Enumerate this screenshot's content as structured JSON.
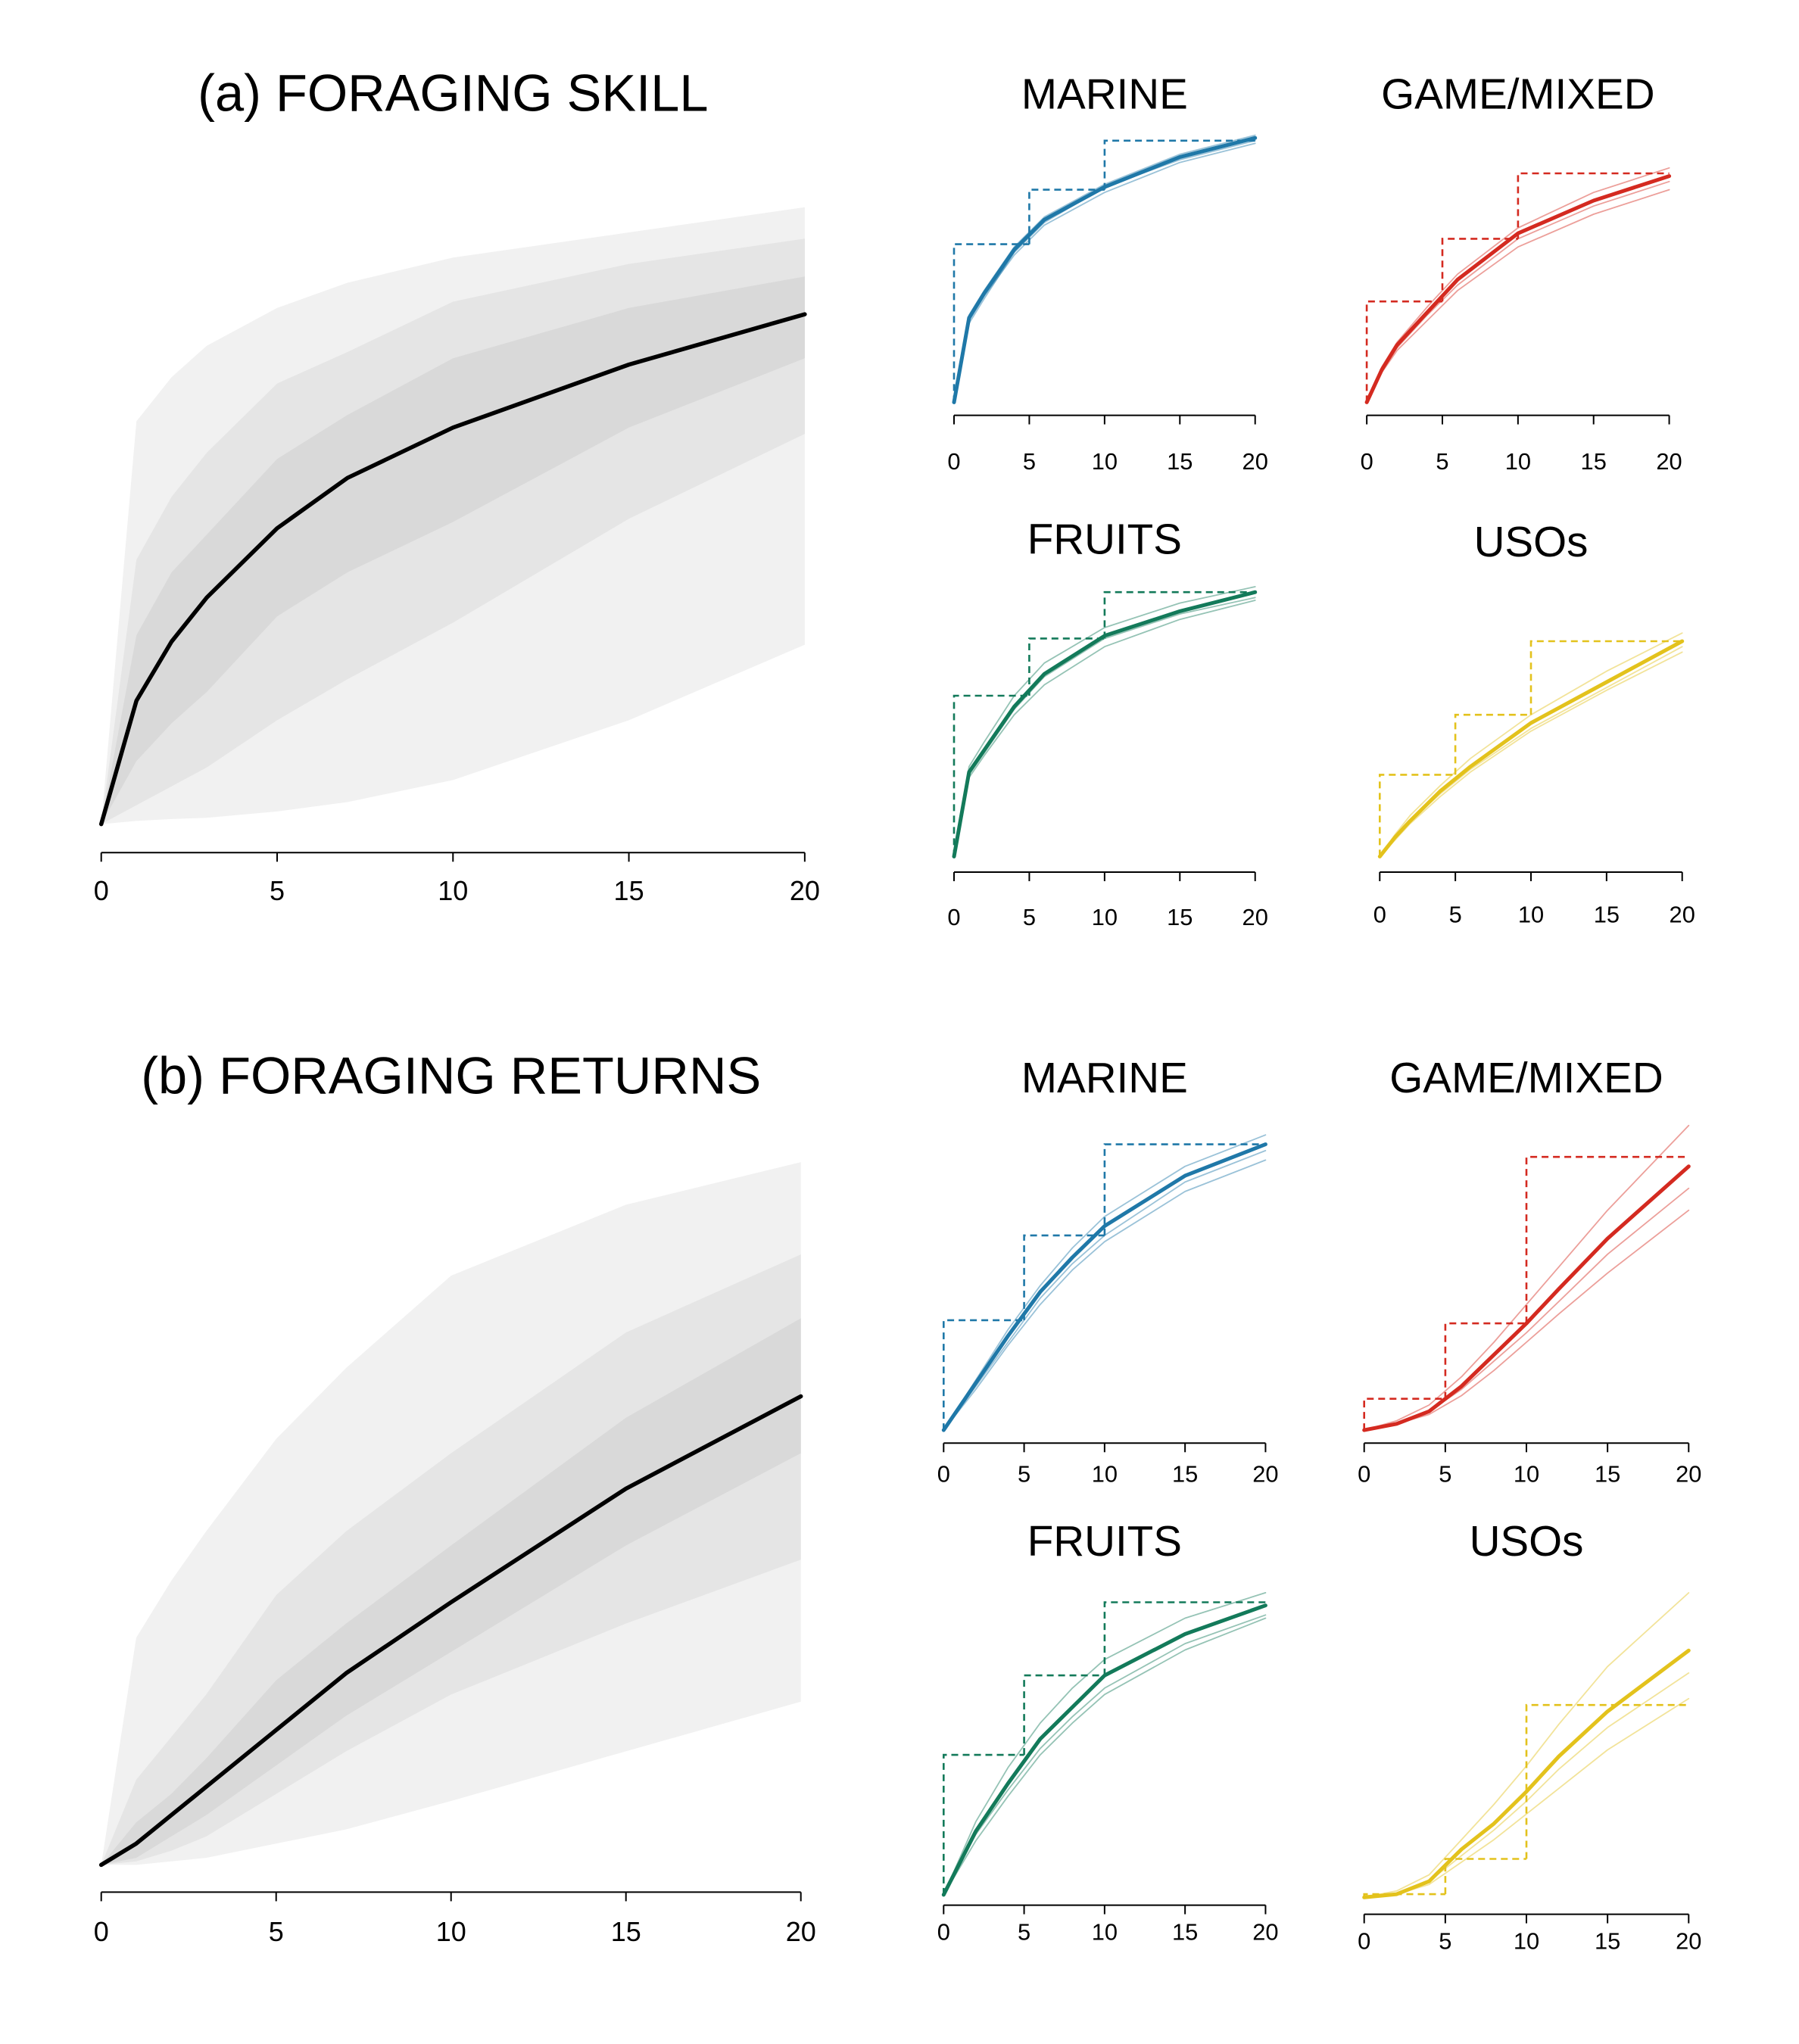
{
  "chart_data": [
    {
      "type": "band-line",
      "title": "(a) FORAGING SKILL",
      "x": [
        0,
        1,
        2,
        3,
        5,
        7,
        10,
        15,
        20
      ],
      "values": [
        0,
        0.196,
        0.29,
        0.36,
        0.47,
        0.55,
        0.63,
        0.73,
        0.81
      ],
      "color": "#000000",
      "bands": [
        {
          "color": "#f1f1f1",
          "lower": [
            0,
            0.005,
            0.008,
            0.01,
            0.02,
            0.035,
            0.07,
            0.165,
            0.285
          ],
          "upper": [
            0,
            0.64,
            0.71,
            0.76,
            0.82,
            0.86,
            0.9,
            0.94,
            0.98
          ]
        },
        {
          "color": "#e5e5e5",
          "lower": [
            0,
            0.03,
            0.06,
            0.09,
            0.165,
            0.23,
            0.32,
            0.485,
            0.62
          ],
          "upper": [
            0,
            0.42,
            0.52,
            0.59,
            0.7,
            0.75,
            0.83,
            0.89,
            0.93
          ]
        },
        {
          "color": "#d9d9d9",
          "lower": [
            0,
            0.1,
            0.16,
            0.21,
            0.33,
            0.4,
            0.48,
            0.63,
            0.74
          ],
          "upper": [
            0,
            0.3,
            0.4,
            0.46,
            0.58,
            0.65,
            0.74,
            0.82,
            0.87
          ]
        }
      ],
      "xlim": [
        0,
        20
      ],
      "xticks": [
        0,
        5,
        10,
        15,
        20
      ],
      "ylim": [
        0,
        1
      ]
    },
    {
      "type": "spaghetti",
      "title": "MARINE",
      "x": [
        0,
        1,
        2,
        4,
        6,
        10,
        15,
        20
      ],
      "values": [
        0,
        0.31,
        0.4,
        0.56,
        0.67,
        0.79,
        0.9,
        0.97
      ],
      "color": "#1f78a8",
      "draws": [
        [
          0,
          0.3,
          0.39,
          0.54,
          0.65,
          0.77,
          0.88,
          0.95
        ],
        [
          0,
          0.32,
          0.41,
          0.57,
          0.68,
          0.8,
          0.91,
          0.98
        ],
        [
          0,
          0.29,
          0.38,
          0.55,
          0.66,
          0.79,
          0.89,
          0.96
        ]
      ],
      "step_x": [
        0,
        5,
        10
      ],
      "step_values": [
        0.58,
        0.78,
        0.96
      ],
      "xlim": [
        0,
        20
      ],
      "xticks": [
        0,
        5,
        10,
        15,
        20
      ],
      "ylim": [
        0,
        1
      ]
    },
    {
      "type": "spaghetti",
      "title": "GAME/MIXED",
      "x": [
        0,
        1,
        2,
        4,
        6,
        10,
        15,
        20
      ],
      "values": [
        0,
        0.12,
        0.21,
        0.33,
        0.45,
        0.62,
        0.74,
        0.83
      ],
      "color": "#d42a20",
      "draws": [
        [
          0,
          0.11,
          0.19,
          0.3,
          0.41,
          0.57,
          0.69,
          0.78
        ],
        [
          0,
          0.13,
          0.22,
          0.35,
          0.47,
          0.64,
          0.77,
          0.86
        ],
        [
          0,
          0.12,
          0.2,
          0.32,
          0.43,
          0.6,
          0.72,
          0.81
        ]
      ],
      "step_x": [
        0,
        5,
        10
      ],
      "step_values": [
        0.37,
        0.6,
        0.84
      ],
      "xlim": [
        0,
        20
      ],
      "xticks": [
        0,
        5,
        10,
        15,
        20
      ],
      "ylim": [
        0,
        1
      ]
    },
    {
      "type": "spaghetti",
      "title": "FRUITS",
      "x": [
        0,
        1,
        2,
        4,
        6,
        10,
        15,
        20
      ],
      "values": [
        0,
        0.31,
        0.39,
        0.55,
        0.67,
        0.81,
        0.9,
        0.97
      ],
      "color": "#137a5a",
      "draws": [
        [
          0,
          0.29,
          0.37,
          0.52,
          0.63,
          0.77,
          0.87,
          0.94
        ],
        [
          0,
          0.33,
          0.42,
          0.59,
          0.71,
          0.84,
          0.93,
          0.99
        ],
        [
          0,
          0.3,
          0.38,
          0.54,
          0.66,
          0.8,
          0.89,
          0.95
        ]
      ],
      "step_x": [
        0,
        5,
        10
      ],
      "step_values": [
        0.59,
        0.8,
        0.97
      ],
      "xlim": [
        0,
        20
      ],
      "xticks": [
        0,
        5,
        10,
        15,
        20
      ],
      "ylim": [
        0,
        1
      ]
    },
    {
      "type": "spaghetti",
      "title": "USOs",
      "x": [
        0,
        1,
        2,
        4,
        6,
        10,
        15,
        20
      ],
      "values": [
        0,
        0.07,
        0.13,
        0.24,
        0.33,
        0.49,
        0.64,
        0.79
      ],
      "color": "#e3c21c",
      "draws": [
        [
          0,
          0.06,
          0.12,
          0.22,
          0.31,
          0.46,
          0.61,
          0.75
        ],
        [
          0,
          0.08,
          0.15,
          0.26,
          0.36,
          0.52,
          0.68,
          0.82
        ],
        [
          0,
          0.07,
          0.13,
          0.23,
          0.32,
          0.47,
          0.62,
          0.77
        ]
      ],
      "step_x": [
        0,
        5,
        10
      ],
      "step_values": [
        0.3,
        0.52,
        0.79
      ],
      "xlim": [
        0,
        20
      ],
      "xticks": [
        0,
        5,
        10,
        15,
        20
      ],
      "ylim": [
        0,
        1
      ]
    },
    {
      "type": "band-line",
      "title": "(b) FORAGING RETURNS",
      "x": [
        0,
        1,
        2,
        3,
        5,
        7,
        10,
        15,
        20
      ],
      "values": [
        0,
        0.03,
        0.07,
        0.11,
        0.19,
        0.27,
        0.37,
        0.53,
        0.66
      ],
      "color": "#000000",
      "bands": [
        {
          "color": "#f1f1f1",
          "lower": [
            0,
            0,
            0.005,
            0.01,
            0.03,
            0.05,
            0.09,
            0.16,
            0.23
          ],
          "upper": [
            0,
            0.32,
            0.4,
            0.47,
            0.6,
            0.7,
            0.83,
            0.93,
            0.99
          ]
        },
        {
          "color": "#e5e5e5",
          "lower": [
            0,
            0.005,
            0.02,
            0.04,
            0.1,
            0.16,
            0.24,
            0.34,
            0.43
          ],
          "upper": [
            0,
            0.12,
            0.18,
            0.24,
            0.38,
            0.47,
            0.58,
            0.75,
            0.86
          ]
        },
        {
          "color": "#d9d9d9",
          "lower": [
            0,
            0.01,
            0.04,
            0.07,
            0.14,
            0.21,
            0.3,
            0.45,
            0.58
          ],
          "upper": [
            0,
            0.06,
            0.1,
            0.15,
            0.26,
            0.34,
            0.45,
            0.63,
            0.77
          ]
        }
      ],
      "xlim": [
        0,
        20
      ],
      "xticks": [
        0,
        5,
        10,
        15,
        20
      ],
      "ylim": [
        0,
        1
      ]
    },
    {
      "type": "spaghetti",
      "title": "MARINE",
      "x": [
        0,
        2,
        4,
        6,
        8,
        10,
        15,
        20
      ],
      "values": [
        0,
        0.15,
        0.3,
        0.44,
        0.55,
        0.65,
        0.81,
        0.91
      ],
      "color": "#1f78a8",
      "draws": [
        [
          0,
          0.13,
          0.27,
          0.4,
          0.51,
          0.6,
          0.76,
          0.86
        ],
        [
          0,
          0.16,
          0.32,
          0.46,
          0.58,
          0.68,
          0.84,
          0.94
        ],
        [
          0,
          0.14,
          0.28,
          0.42,
          0.53,
          0.62,
          0.79,
          0.89
        ]
      ],
      "step_x": [
        0,
        5,
        10
      ],
      "step_values": [
        0.35,
        0.62,
        0.91
      ],
      "xlim": [
        0,
        20
      ],
      "xticks": [
        0,
        5,
        10,
        15,
        20
      ],
      "ylim": [
        0,
        1
      ]
    },
    {
      "type": "spaghetti",
      "title": "GAME/MIXED",
      "x": [
        0,
        2,
        4,
        6,
        8,
        10,
        12,
        15,
        20
      ],
      "values": [
        0,
        0.02,
        0.06,
        0.14,
        0.24,
        0.34,
        0.45,
        0.61,
        0.84
      ],
      "color": "#d42a20",
      "draws": [
        [
          0,
          0.02,
          0.05,
          0.11,
          0.19,
          0.28,
          0.37,
          0.5,
          0.7
        ],
        [
          0,
          0.03,
          0.08,
          0.17,
          0.28,
          0.4,
          0.52,
          0.7,
          0.97
        ],
        [
          0,
          0.02,
          0.06,
          0.13,
          0.22,
          0.31,
          0.41,
          0.56,
          0.77
        ]
      ],
      "step_x": [
        0,
        5,
        10
      ],
      "step_values": [
        0.1,
        0.34,
        0.87
      ],
      "xlim": [
        0,
        20
      ],
      "xticks": [
        0,
        5,
        10,
        15,
        20
      ],
      "ylim": [
        0,
        1
      ]
    },
    {
      "type": "spaghetti",
      "title": "FRUITS",
      "x": [
        0,
        2,
        4,
        6,
        8,
        10,
        15,
        20
      ],
      "values": [
        0,
        0.2,
        0.35,
        0.49,
        0.59,
        0.69,
        0.82,
        0.91
      ],
      "color": "#137a5a",
      "draws": [
        [
          0,
          0.17,
          0.31,
          0.44,
          0.54,
          0.63,
          0.77,
          0.87
        ],
        [
          0,
          0.23,
          0.4,
          0.54,
          0.65,
          0.74,
          0.87,
          0.95
        ],
        [
          0,
          0.19,
          0.33,
          0.46,
          0.56,
          0.65,
          0.79,
          0.88
        ]
      ],
      "step_x": [
        0,
        5,
        10
      ],
      "step_values": [
        0.44,
        0.69,
        0.92
      ],
      "xlim": [
        0,
        20
      ],
      "xticks": [
        0,
        5,
        10,
        15,
        20
      ],
      "ylim": [
        0,
        1
      ]
    },
    {
      "type": "spaghetti",
      "title": "USOs",
      "x": [
        0,
        2,
        4,
        6,
        8,
        10,
        12,
        15,
        20
      ],
      "values": [
        0,
        0.01,
        0.05,
        0.15,
        0.23,
        0.33,
        0.44,
        0.58,
        0.77
      ],
      "color": "#e3c21c",
      "draws": [
        [
          0,
          0.01,
          0.04,
          0.11,
          0.18,
          0.26,
          0.34,
          0.46,
          0.62
        ],
        [
          0,
          0.02,
          0.07,
          0.18,
          0.29,
          0.41,
          0.54,
          0.72,
          0.95
        ],
        [
          0,
          0.01,
          0.05,
          0.13,
          0.21,
          0.3,
          0.4,
          0.53,
          0.7
        ]
      ],
      "step_x": [
        0,
        5,
        10
      ],
      "step_values": [
        0.01,
        0.12,
        0.6
      ],
      "xlim": [
        0,
        20
      ],
      "xticks": [
        0,
        5,
        10,
        15,
        20
      ],
      "ylim": [
        0,
        1
      ]
    }
  ]
}
